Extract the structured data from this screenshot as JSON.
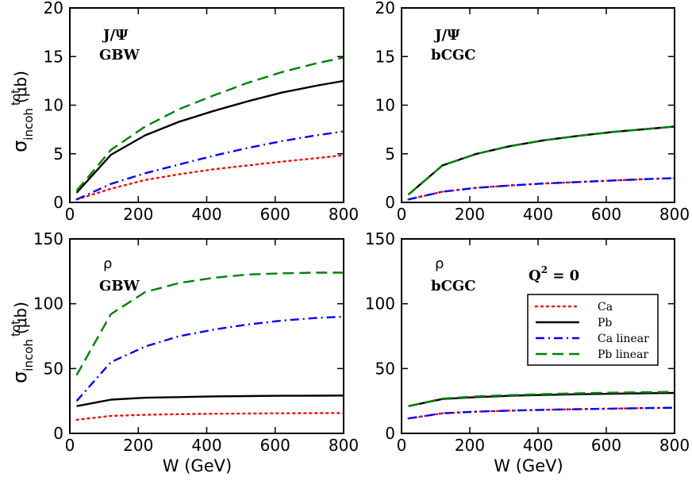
{
  "chart_data": [
    {
      "id": "tl",
      "type": "line",
      "labels": [
        "J/Ψ",
        "GBW"
      ],
      "ylabel_main": "σ",
      "ylabel_sup": "tot",
      "ylabel_sub": "incoh",
      "ylabel_unit": "(μb)",
      "xlabel": "",
      "xlim": [
        0,
        800
      ],
      "ylim": [
        0,
        20
      ],
      "xticks": [
        0,
        200,
        400,
        600,
        800
      ],
      "yticks": [
        0,
        5,
        10,
        15,
        20
      ],
      "x": [
        20,
        120,
        220,
        320,
        420,
        520,
        620,
        720,
        800
      ],
      "series": [
        {
          "name": "Ca",
          "values": [
            0.3,
            1.4,
            2.3,
            2.9,
            3.4,
            3.8,
            4.2,
            4.55,
            4.85
          ]
        },
        {
          "name": "Pb",
          "values": [
            1.0,
            4.9,
            6.9,
            8.3,
            9.4,
            10.4,
            11.3,
            12.0,
            12.5
          ]
        },
        {
          "name": "Ca linear",
          "values": [
            0.3,
            1.9,
            3.0,
            3.9,
            4.8,
            5.6,
            6.3,
            6.9,
            7.3
          ]
        },
        {
          "name": "Pb linear",
          "values": [
            1.2,
            5.4,
            7.8,
            9.6,
            11.0,
            12.3,
            13.4,
            14.3,
            14.9
          ]
        }
      ]
    },
    {
      "id": "tr",
      "type": "line",
      "labels": [
        "J/Ψ",
        "bCGC"
      ],
      "xlabel": "",
      "xlim": [
        0,
        800
      ],
      "ylim": [
        0,
        20
      ],
      "xticks": [
        0,
        200,
        400,
        600,
        800
      ],
      "yticks": [
        0,
        5,
        10,
        15,
        20
      ],
      "x": [
        20,
        120,
        220,
        320,
        420,
        520,
        620,
        720,
        800
      ],
      "series": [
        {
          "name": "Ca",
          "values": [
            0.3,
            1.1,
            1.5,
            1.75,
            1.95,
            2.1,
            2.25,
            2.4,
            2.5
          ]
        },
        {
          "name": "Pb",
          "values": [
            0.8,
            3.8,
            5.0,
            5.8,
            6.4,
            6.85,
            7.25,
            7.55,
            7.8
          ]
        },
        {
          "name": "Ca linear",
          "values": [
            0.3,
            1.1,
            1.5,
            1.75,
            1.95,
            2.1,
            2.25,
            2.4,
            2.5
          ]
        },
        {
          "name": "Pb linear",
          "values": [
            0.8,
            3.8,
            5.0,
            5.8,
            6.4,
            6.85,
            7.25,
            7.55,
            7.8
          ]
        }
      ]
    },
    {
      "id": "bl",
      "type": "line",
      "labels": [
        "ρ",
        "GBW"
      ],
      "ylabel_main": "σ",
      "ylabel_sup": "tot",
      "ylabel_sub": "incoh",
      "ylabel_unit": "(μb)",
      "xlabel": "W (GeV)",
      "xlim": [
        0,
        800
      ],
      "ylim": [
        0,
        150
      ],
      "xticks": [
        0,
        200,
        400,
        600,
        800
      ],
      "yticks": [
        0,
        50,
        100,
        150
      ],
      "x": [
        20,
        120,
        220,
        320,
        420,
        520,
        620,
        720,
        800
      ],
      "series": [
        {
          "name": "Ca",
          "values": [
            10.5,
            13.5,
            14.3,
            14.8,
            15.1,
            15.3,
            15.5,
            15.6,
            15.7
          ]
        },
        {
          "name": "Pb",
          "values": [
            21,
            26,
            27.5,
            28,
            28.5,
            28.8,
            29,
            29.1,
            29.2
          ]
        },
        {
          "name": "Ca linear",
          "values": [
            25,
            55,
            67,
            75,
            80,
            84,
            87,
            89,
            90
          ]
        },
        {
          "name": "Pb linear",
          "values": [
            45,
            92,
            109,
            116,
            120,
            122.5,
            123.5,
            124,
            124
          ]
        }
      ]
    },
    {
      "id": "br",
      "type": "line",
      "labels": [
        "ρ",
        "bCGC"
      ],
      "annotation": "Q",
      "annotation_sup": "2",
      "annotation_rest": " = 0",
      "xlabel": "W (GeV)",
      "xlim": [
        0,
        800
      ],
      "ylim": [
        0,
        150
      ],
      "xticks": [
        0,
        200,
        400,
        600,
        800
      ],
      "yticks": [
        0,
        50,
        100,
        150
      ],
      "x": [
        20,
        120,
        220,
        320,
        420,
        520,
        620,
        720,
        800
      ],
      "series": [
        {
          "name": "Ca",
          "values": [
            11.5,
            15.5,
            16.8,
            17.6,
            18.2,
            18.7,
            19.1,
            19.5,
            19.8
          ]
        },
        {
          "name": "Pb",
          "values": [
            21,
            26.5,
            28,
            29,
            29.7,
            30.2,
            30.6,
            31,
            31.2
          ]
        },
        {
          "name": "Ca linear",
          "values": [
            11.5,
            15.5,
            16.8,
            17.6,
            18.2,
            18.7,
            19.1,
            19.5,
            19.8
          ]
        },
        {
          "name": "Pb linear",
          "values": [
            21,
            26.8,
            28.5,
            29.5,
            30.3,
            30.9,
            31.4,
            31.8,
            32.1
          ]
        }
      ],
      "legend": {
        "placement": "right-middle",
        "entries": [
          "Ca",
          "Pb",
          "Ca linear",
          "Pb linear"
        ]
      }
    }
  ],
  "styles": {
    "Ca": {
      "color": "#ff0000",
      "dash": "dotted"
    },
    "Pb": {
      "color": "#000000",
      "dash": "solid"
    },
    "Ca linear": {
      "color": "#0000ff",
      "dash": "dash-dot"
    },
    "Pb linear": {
      "color": "#008000",
      "dash": "dashed"
    }
  }
}
